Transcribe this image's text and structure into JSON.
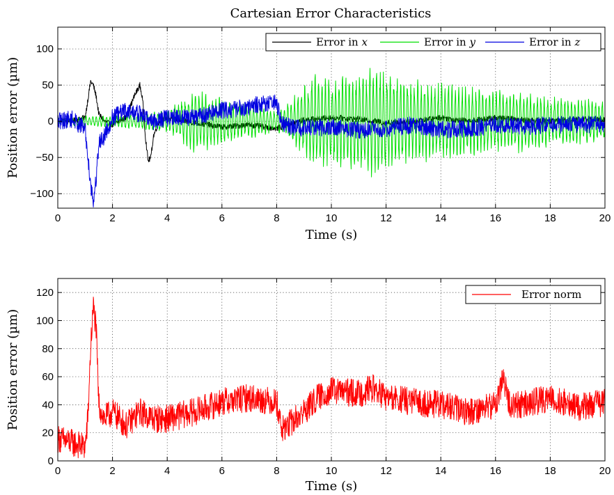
{
  "figure_title": "Cartesian Error Characteristics",
  "colors": {
    "x": "#000000",
    "y": "#00e000",
    "z": "#0000e0",
    "norm": "#ff0000",
    "axis": "#000000",
    "grid": "#333333"
  },
  "chart_data": [
    {
      "type": "line",
      "title": "Cartesian Error Characteristics",
      "xlabel": "Time (s)",
      "ylabel": "Position error (µm)",
      "xlim": [
        0,
        20
      ],
      "ylim": [
        -120,
        130
      ],
      "xticks": [
        0,
        2,
        4,
        6,
        8,
        10,
        12,
        14,
        16,
        18,
        20
      ],
      "yticks": [
        -100,
        -50,
        0,
        50,
        100
      ],
      "grid": true,
      "legend_position": "top-right",
      "legend": [
        {
          "label": "Error in ",
          "var": "x"
        },
        {
          "label": "Error in ",
          "var": "y"
        },
        {
          "label": "Error in ",
          "var": "z"
        }
      ],
      "series": [
        {
          "name": "Error in x",
          "color_key": "x",
          "noise": 4,
          "x": [
            0,
            0.5,
            1.0,
            1.1,
            1.2,
            1.3,
            1.4,
            1.5,
            1.7,
            2.0,
            2.5,
            2.8,
            3.0,
            3.1,
            3.2,
            3.3,
            3.4,
            3.5,
            3.7,
            4.0,
            5.0,
            6.0,
            7.0,
            8.0,
            9.0,
            10.0,
            11.0,
            12.0,
            13.0,
            14.0,
            15.0,
            16.0,
            17.0,
            18.0,
            19.0,
            20.0
          ],
          "y": [
            2,
            0,
            5,
            30,
            55,
            50,
            35,
            10,
            0,
            -5,
            5,
            35,
            50,
            30,
            -20,
            -55,
            -50,
            -20,
            0,
            5,
            -2,
            -8,
            -5,
            -10,
            2,
            5,
            3,
            -2,
            0,
            5,
            0,
            5,
            2,
            0,
            3,
            2
          ]
        },
        {
          "name": "Error in y",
          "color_key": "y",
          "osc_period": 0.125,
          "x": [
            0,
            1.0,
            2.0,
            3.0,
            4.0,
            4.5,
            5.0,
            6.0,
            7.0,
            8.0,
            8.5,
            9.0,
            9.5,
            10.0,
            11.0,
            11.5,
            12.0,
            13.0,
            14.0,
            15.0,
            16.0,
            17.0,
            18.0,
            19.0,
            20.0
          ],
          "y": [
            5,
            8,
            8,
            12,
            15,
            30,
            45,
            35,
            25,
            15,
            30,
            55,
            70,
            65,
            70,
            80,
            70,
            60,
            55,
            50,
            45,
            45,
            35,
            35,
            30
          ]
        },
        {
          "name": "Error in z",
          "color_key": "z",
          "noise": 12,
          "x": [
            0,
            0.5,
            1.0,
            1.1,
            1.2,
            1.3,
            1.4,
            1.5,
            1.7,
            2.0,
            2.5,
            3.0,
            3.5,
            4.0,
            5.0,
            6.0,
            7.0,
            7.5,
            8.0,
            8.2,
            9.0,
            10.0,
            11.0,
            12.0,
            13.0,
            14.0,
            15.0,
            16.0,
            17.0,
            18.0,
            19.0,
            20.0
          ],
          "y": [
            0,
            3,
            -10,
            -50,
            -85,
            -112,
            -80,
            -30,
            -20,
            5,
            15,
            10,
            0,
            5,
            5,
            15,
            20,
            25,
            25,
            -5,
            -10,
            -8,
            -12,
            -10,
            -5,
            -12,
            -10,
            -5,
            -8,
            -5,
            -5,
            -3
          ]
        }
      ]
    },
    {
      "type": "line",
      "title": "",
      "xlabel": "Time (s)",
      "ylabel": "Position error (µm)",
      "xlim": [
        0,
        20
      ],
      "ylim": [
        0,
        130
      ],
      "xticks": [
        0,
        2,
        4,
        6,
        8,
        10,
        12,
        14,
        16,
        18,
        20
      ],
      "yticks": [
        0,
        20,
        40,
        60,
        80,
        100,
        120
      ],
      "grid": true,
      "legend_position": "top-right",
      "legend": [
        {
          "label": "Error norm",
          "var": ""
        }
      ],
      "series": [
        {
          "name": "Error norm",
          "color_key": "norm",
          "noise": 10,
          "x": [
            0,
            0.5,
            1.0,
            1.1,
            1.2,
            1.3,
            1.4,
            1.5,
            1.7,
            2.0,
            2.5,
            3.0,
            3.5,
            4.0,
            5.0,
            6.0,
            7.0,
            8.0,
            8.2,
            9.0,
            9.5,
            10.0,
            11.0,
            11.5,
            12.0,
            13.0,
            14.0,
            15.0,
            16.0,
            16.3,
            16.5,
            17.0,
            18.0,
            19.0,
            20.0
          ],
          "y": [
            16,
            13,
            10,
            30,
            80,
            110,
            95,
            40,
            30,
            35,
            25,
            35,
            30,
            30,
            35,
            42,
            45,
            42,
            22,
            35,
            45,
            50,
            48,
            52,
            45,
            42,
            40,
            35,
            40,
            60,
            40,
            40,
            45,
            38,
            42
          ]
        }
      ]
    }
  ]
}
